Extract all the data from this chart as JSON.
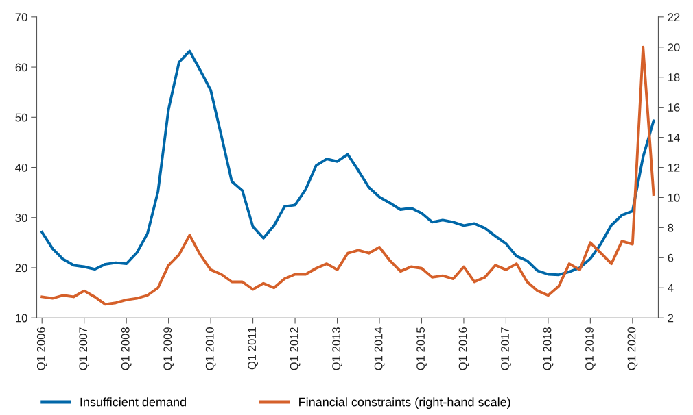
{
  "chart_data": {
    "type": "line",
    "categories": [
      "Q1 2006",
      null,
      null,
      null,
      "Q1 2007",
      null,
      null,
      null,
      "Q1 2008",
      null,
      null,
      null,
      "Q1 2009",
      null,
      null,
      null,
      "Q1 2010",
      null,
      null,
      null,
      "Q1 2011",
      null,
      null,
      null,
      "Q1 2012",
      null,
      null,
      null,
      "Q1 2013",
      null,
      null,
      null,
      "Q1 2014",
      null,
      null,
      null,
      "Q1 2015",
      null,
      null,
      null,
      "Q1 2016",
      null,
      null,
      null,
      "Q1 2017",
      null,
      null,
      null,
      "Q1 2018",
      null,
      null,
      null,
      "Q1 2019",
      null,
      null,
      null,
      "Q1 2020",
      null,
      null
    ],
    "series": [
      {
        "name": "Insufficient demand",
        "color": "#0067a8",
        "values": [
          27.1,
          23.8,
          21.7,
          20.5,
          20.2,
          19.7,
          20.7,
          21.0,
          20.8,
          23.0,
          26.8,
          35.2,
          51.6,
          61.0,
          63.2,
          59.4,
          55.4,
          46.4,
          37.2,
          35.4,
          28.2,
          25.9,
          28.4,
          32.2,
          32.5,
          35.6,
          40.4,
          41.7,
          41.2,
          42.6,
          39.4,
          36.0,
          34.1,
          32.9,
          31.6,
          31.9,
          30.9,
          29.1,
          29.5,
          29.1,
          28.4,
          28.8,
          27.9,
          26.3,
          24.8,
          22.3,
          21.4,
          19.4,
          18.7,
          18.6,
          19.2,
          20.0,
          21.8,
          24.8,
          28.5,
          30.5,
          31.3,
          42.1,
          49.3
        ]
      },
      {
        "name": "Financial constraints (right-hand scale)",
        "color": "#d5602a",
        "axis": "y2",
        "values": [
          3.4,
          3.3,
          3.5,
          3.4,
          3.8,
          3.4,
          2.9,
          3.0,
          3.2,
          3.3,
          3.5,
          4.0,
          5.5,
          6.2,
          7.5,
          6.2,
          5.2,
          4.9,
          4.4,
          4.4,
          3.9,
          4.3,
          4.0,
          4.6,
          4.9,
          4.9,
          5.3,
          5.6,
          5.2,
          6.3,
          6.5,
          6.3,
          6.7,
          5.8,
          5.1,
          5.4,
          5.3,
          4.7,
          4.8,
          4.6,
          5.4,
          4.4,
          4.7,
          5.5,
          5.2,
          5.6,
          4.4,
          3.8,
          3.5,
          4.1,
          5.6,
          5.2,
          7.0,
          6.3,
          5.6,
          7.1,
          6.9,
          20.0,
          10.2
        ]
      }
    ],
    "ylim": [
      10,
      70
    ],
    "yticks": [
      10,
      20,
      30,
      40,
      50,
      60,
      70
    ],
    "y2lim": [
      2,
      22
    ],
    "y2ticks": [
      2,
      4,
      6,
      8,
      10,
      12,
      14,
      16,
      18,
      20,
      22
    ],
    "grid": false,
    "legend": "bottom",
    "marker": "none",
    "line_style": "solid"
  }
}
